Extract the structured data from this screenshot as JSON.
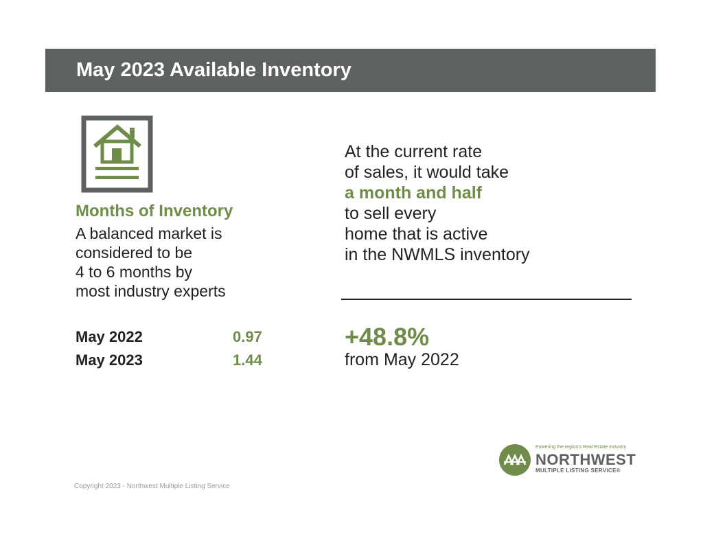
{
  "header": {
    "title": "May 2023 Available Inventory"
  },
  "icons": {
    "inventory": "house-document-icon",
    "logo": "northwest-mls-logo-icon"
  },
  "colors": {
    "banner": "#5d625f",
    "accent": "#6f8c4a",
    "text": "#231f20"
  },
  "months_of_inventory": {
    "heading": "Months of Inventory",
    "description_lines": [
      "A balanced market is",
      "considered to be",
      "4 to 6 months by",
      "most industry experts"
    ],
    "stats": [
      {
        "label": "May 2022",
        "value": "0.97"
      },
      {
        "label": "May 2023",
        "value": "1.44"
      }
    ]
  },
  "rate_statement": {
    "line1": "At the current rate",
    "line2": "of sales, it would take",
    "highlight": "a month and half",
    "line4": "to sell every",
    "line5": "home that is active",
    "line6": "in the NWMLS inventory"
  },
  "change": {
    "value": "+48.8%",
    "caption": "from May 2022"
  },
  "logo": {
    "tagline": "Powering the region's Real Estate Industry",
    "name": "NORTHWEST",
    "subtitle": "MULTIPLE LISTING SERVICE®"
  },
  "footer": {
    "copyright": "Copyright 2023 - Northwest Multiple Listing Service"
  }
}
